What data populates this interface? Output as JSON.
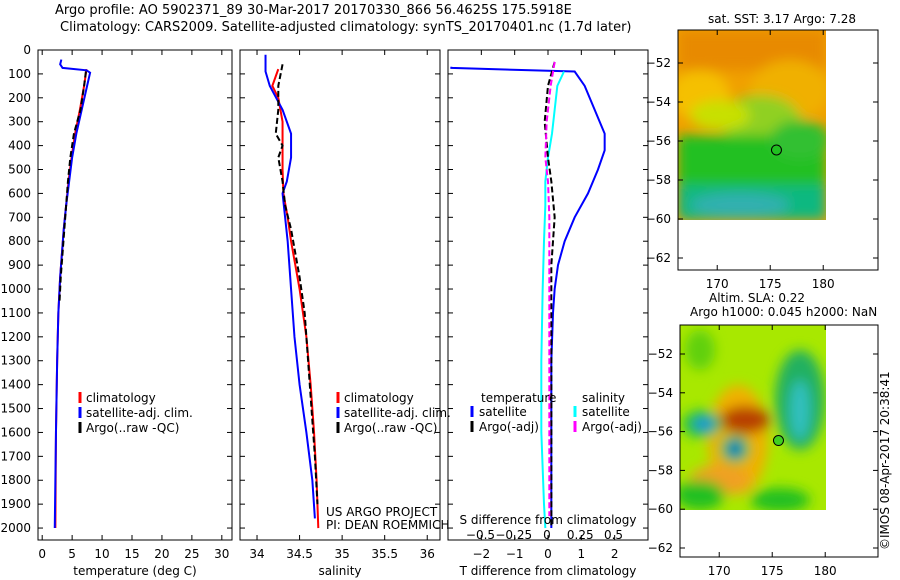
{
  "header": {
    "line1": "Argo profile: AO 5902371_89 30-Mar-2017 20170330_866 56.4625S 175.5918E",
    "line2": "Climatology: CARS2009. Satellite-adjusted climatology: synTS_20170401.nc (1.7d later)"
  },
  "colors": {
    "climatology": "#ff0000",
    "satellite": "#0000ff",
    "argo": "#000000",
    "sal_satellite": "#00ffff",
    "sal_argo": "#ff00ff"
  },
  "chart_data": [
    {
      "type": "line",
      "id": "temperature",
      "xlabel": "temperature (deg C)",
      "xlim": [
        -0.7,
        31.7
      ],
      "ylim": [
        2050,
        0
      ],
      "xticks": [
        0,
        5,
        10,
        15,
        20,
        25,
        30
      ],
      "yticks": [
        0,
        100,
        200,
        300,
        400,
        500,
        600,
        700,
        800,
        900,
        1000,
        1100,
        1200,
        1300,
        1400,
        1500,
        1600,
        1700,
        1800,
        1900,
        2000
      ],
      "legend": [
        "climatology",
        "satellite-adj. clim.",
        "Argo(..raw -QC)"
      ],
      "series": [
        {
          "name": "climatology",
          "color": "#ff0000",
          "depth": [
            80,
            150,
            250,
            350,
            450,
            550,
            650,
            750,
            850,
            950,
            1100,
            1300,
            1600,
            2000
          ],
          "values": [
            7.4,
            7.0,
            6.3,
            5.5,
            4.9,
            4.4,
            4.0,
            3.6,
            3.3,
            3.0,
            2.7,
            2.5,
            2.3,
            2.2
          ]
        },
        {
          "name": "satellite-adj. clim.",
          "color": "#0000ff",
          "depth": [
            40,
            60,
            75,
            85,
            95,
            150,
            250,
            350,
            450,
            550,
            650,
            750,
            850,
            950,
            1100,
            1300,
            1600,
            2000
          ],
          "values": [
            3.2,
            3.0,
            3.4,
            7.4,
            8.0,
            7.5,
            6.6,
            5.7,
            5.0,
            4.5,
            4.0,
            3.6,
            3.3,
            3.0,
            2.7,
            2.5,
            2.3,
            2.1
          ]
        },
        {
          "name": "Argo(..raw -QC)",
          "color": "#000000",
          "dashed": true,
          "depth": [
            90,
            150,
            250,
            350,
            450,
            550,
            650,
            750,
            850,
            950,
            1050
          ],
          "values": [
            7.3,
            7.0,
            6.4,
            5.3,
            4.7,
            4.3,
            4.0,
            3.7,
            3.4,
            3.1,
            2.9
          ]
        }
      ]
    },
    {
      "type": "line",
      "id": "salinity",
      "xlabel": "salinity",
      "xlim": [
        33.8,
        36.15
      ],
      "ylim": [
        2050,
        0
      ],
      "xticks": [
        34,
        34.5,
        35,
        35.5,
        36
      ],
      "yticks": [
        0,
        100,
        200,
        300,
        400,
        500,
        600,
        700,
        800,
        900,
        1000,
        1100,
        1200,
        1300,
        1400,
        1500,
        1600,
        1700,
        1800,
        1900,
        2000
      ],
      "legend": [
        "climatology",
        "satellite-adj. clim.",
        "Argo(..raw -QC)"
      ],
      "annotation": [
        "US ARGO PROJECT",
        "PI: DEAN ROEMMICH"
      ],
      "series": [
        {
          "name": "climatology",
          "color": "#ff0000",
          "depth": [
            80,
            150,
            200,
            300,
            400,
            500,
            600,
            700,
            800,
            900,
            1000,
            1200,
            1400,
            1600,
            1800,
            2000
          ],
          "values": [
            34.25,
            34.18,
            34.25,
            34.3,
            34.3,
            34.3,
            34.31,
            34.36,
            34.4,
            34.45,
            34.5,
            34.58,
            34.63,
            34.67,
            34.7,
            34.72
          ]
        },
        {
          "name": "satellite-adj. clim.",
          "color": "#0000ff",
          "depth": [
            20,
            90,
            150,
            250,
            350,
            450,
            550,
            600,
            700,
            800,
            900,
            1000,
            1200,
            1400,
            1600,
            1800,
            1960
          ],
          "values": [
            34.1,
            34.1,
            34.15,
            34.3,
            34.4,
            34.4,
            34.35,
            34.3,
            34.33,
            34.36,
            34.38,
            34.4,
            34.44,
            34.5,
            34.58,
            34.65,
            34.68
          ]
        },
        {
          "name": "Argo(..raw -QC)",
          "color": "#000000",
          "dashed": true,
          "depth": [
            60,
            150,
            250,
            350,
            400,
            450,
            550,
            650,
            750,
            850,
            950,
            1100,
            1300,
            1500,
            1700,
            1900
          ],
          "values": [
            34.3,
            34.25,
            34.25,
            34.22,
            34.3,
            34.25,
            34.3,
            34.33,
            34.4,
            34.45,
            34.5,
            34.56,
            34.6,
            34.64,
            34.68,
            34.71
          ]
        }
      ]
    },
    {
      "type": "line",
      "id": "difference",
      "xlabel": "T difference from climatology",
      "xlabel2": "S difference from climatology",
      "xlim": [
        -3,
        3
      ],
      "ylim": [
        2050,
        0
      ],
      "xticks": [
        -2,
        -1,
        0,
        1,
        2
      ],
      "xticks2": [
        -0.5,
        -0.25,
        0,
        0.25,
        0.5
      ],
      "s_scale": 4,
      "legend": {
        "temperature_title": "temperature",
        "salinity_title": "salinity",
        "t_sat": "satellite",
        "t_argo": "Argo(-adj)",
        "s_sat": "satellite",
        "s_argo": "Argo(-adj)"
      },
      "series": [
        {
          "name": "T satellite",
          "color": "#0000ff",
          "depth": [
            70,
            75,
            90,
            150,
            250,
            350,
            420,
            500,
            600,
            700,
            800,
            900,
            1000,
            1100,
            1300,
            1600,
            2000
          ],
          "values": [
            -2.9,
            -2.9,
            0.8,
            1.1,
            1.4,
            1.7,
            1.7,
            1.5,
            1.2,
            0.8,
            0.5,
            0.3,
            0.2,
            0.15,
            0.1,
            0.1,
            0.1
          ]
        },
        {
          "name": "S satellite",
          "color": "#00ffff",
          "depth": [
            90,
            150,
            250,
            350,
            450,
            550,
            650,
            800,
            1000,
            1300,
            1600,
            1900,
            2000
          ],
          "values": [
            0.12,
            0.07,
            0.05,
            0.03,
            0.0,
            -0.02,
            -0.02,
            -0.03,
            -0.04,
            -0.05,
            -0.05,
            -0.03,
            -0.02
          ]
        },
        {
          "name": "T Argo",
          "color": "#000000",
          "dashed": true,
          "depth": [
            50,
            150,
            300,
            450,
            550,
            700,
            900,
            1200,
            1500,
            2000
          ],
          "values": [
            0.2,
            0.0,
            -0.1,
            0.0,
            0.1,
            0.2,
            0.1,
            0.1,
            0.1,
            0.1
          ]
        },
        {
          "name": "S Argo",
          "color": "#ff00ff",
          "dashed": true,
          "depth": [
            50,
            150,
            300,
            450,
            550,
            700,
            900,
            1200,
            1500,
            1950
          ],
          "values": [
            0.05,
            0.02,
            -0.01,
            -0.02,
            0.0,
            0.01,
            0.01,
            0.01,
            0.01,
            0.01
          ]
        }
      ]
    },
    {
      "type": "heatmap",
      "id": "sst-map",
      "title": "sat. SST: 3.17 Argo: 7.28",
      "xticks": [
        170,
        175,
        180
      ],
      "yticks": [
        -52,
        -54,
        -56,
        -58,
        -60,
        -62
      ],
      "marker": {
        "lon": 175.59,
        "lat": -56.46
      }
    },
    {
      "type": "heatmap",
      "id": "sla-map",
      "title": "Altim. SLA: 0.22",
      "subtitle": "Argo h1000: 0.045 h2000: NaN",
      "xticks": [
        170,
        175,
        180
      ],
      "yticks": [
        -52,
        -54,
        -56,
        -58,
        -60,
        -62
      ],
      "marker": {
        "lon": 175.59,
        "lat": -56.46
      }
    }
  ],
  "credit": "©IMOS 08-Apr-2017 20:38:41"
}
